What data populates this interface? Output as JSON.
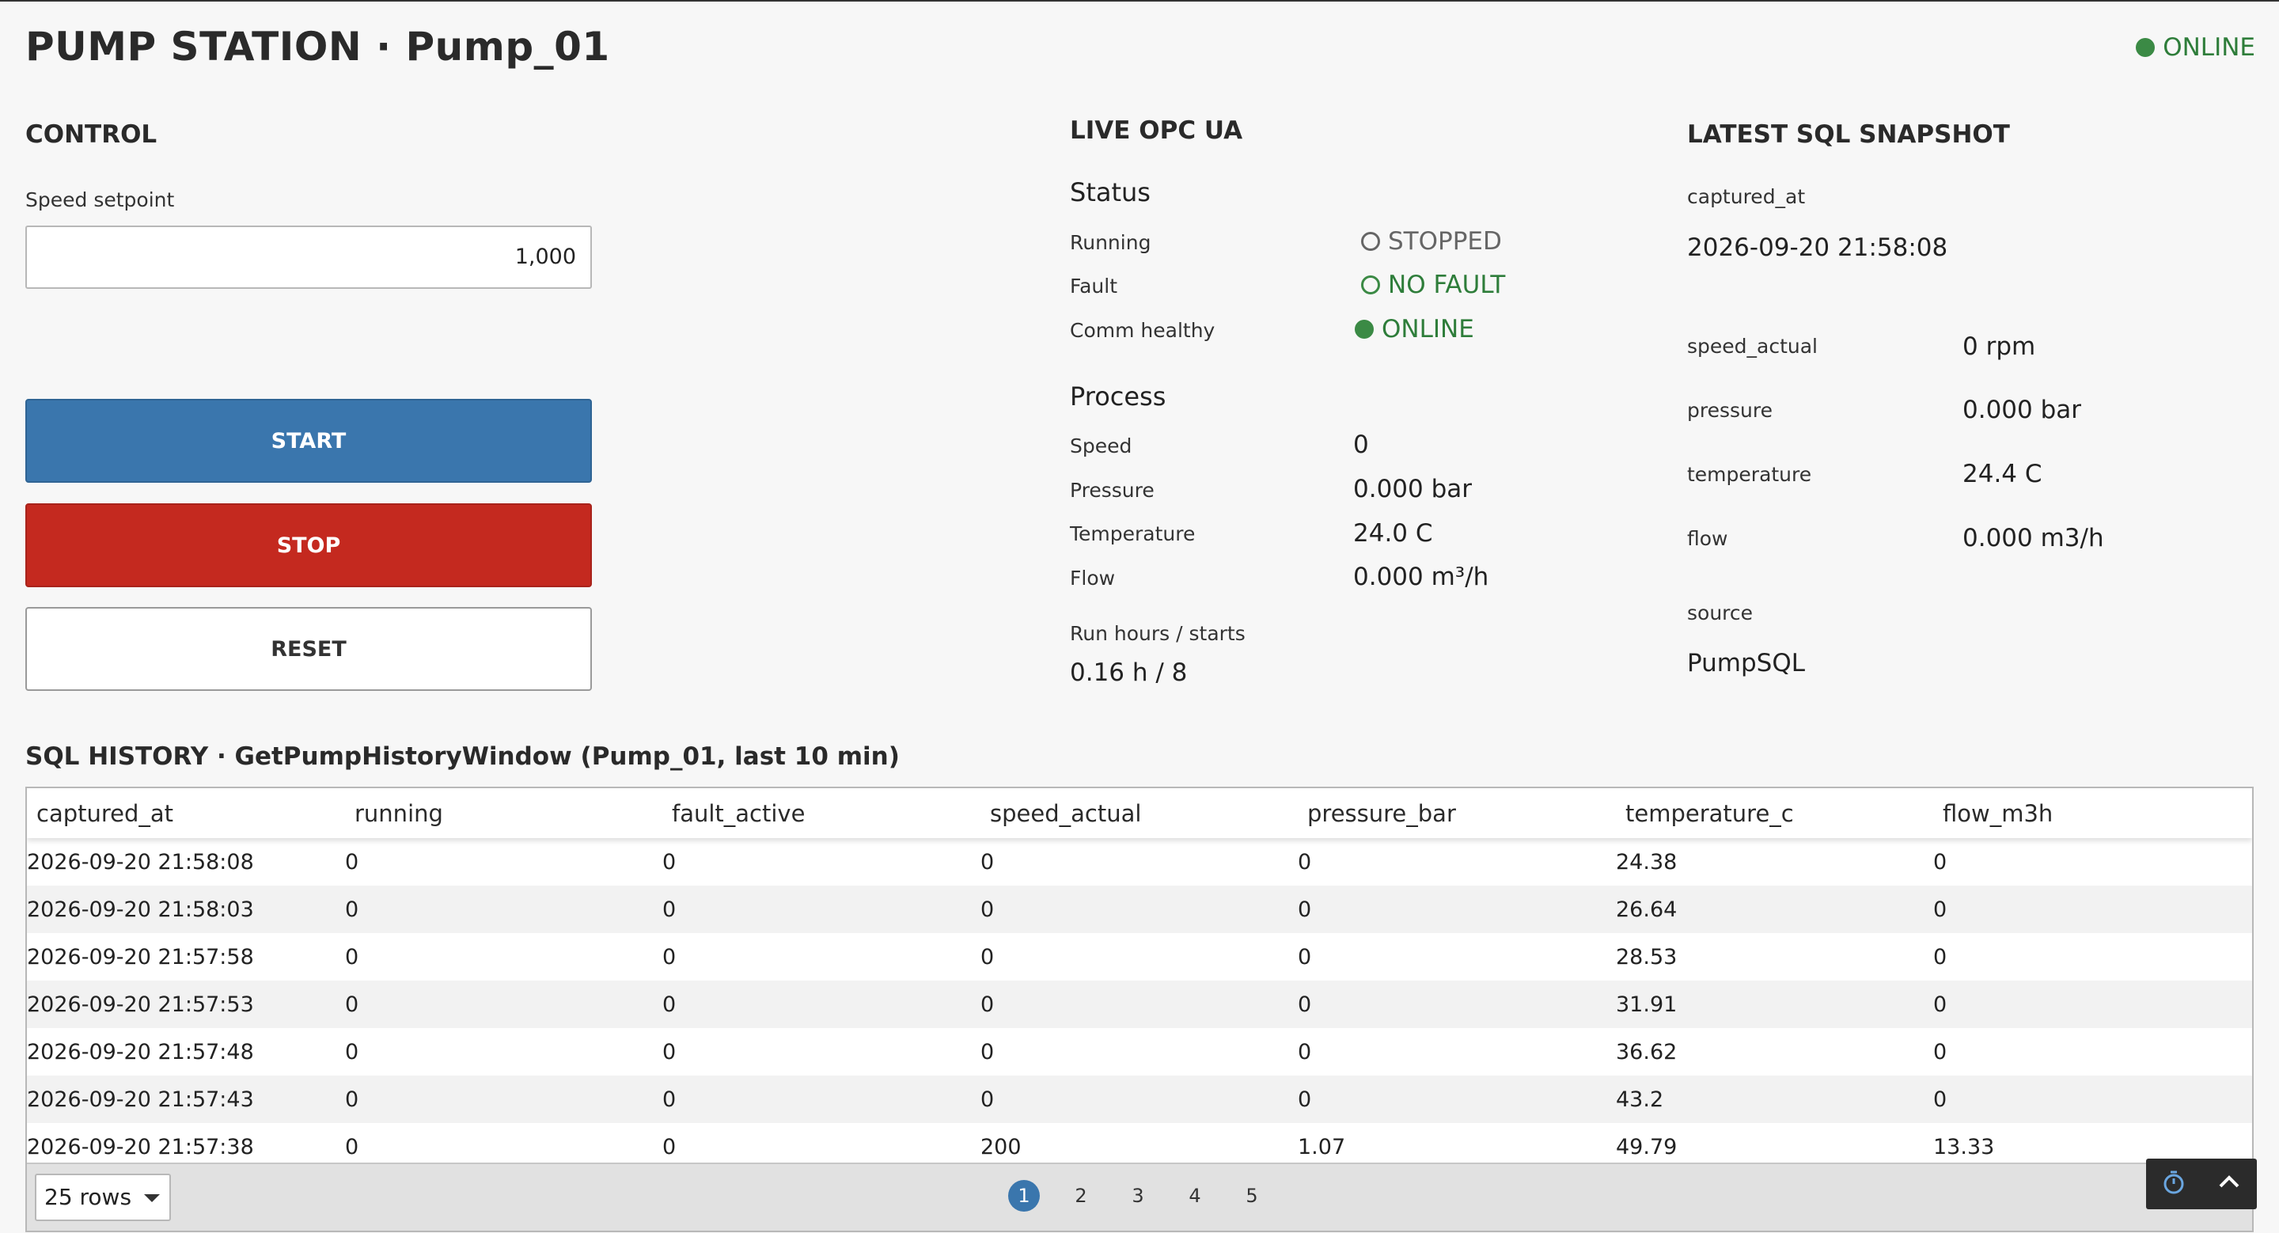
{
  "header": {
    "title": "PUMP STATION · Pump_01",
    "status": "ONLINE"
  },
  "control": {
    "heading": "CONTROL",
    "speed_label": "Speed setpoint",
    "speed_value": "1,000",
    "start_label": "START",
    "stop_label": "STOP",
    "reset_label": "RESET"
  },
  "opc": {
    "heading": "LIVE OPC UA",
    "status_heading": "Status",
    "running_label": "Running",
    "running_value": "STOPPED",
    "fault_label": "Fault",
    "fault_value": "NO FAULT",
    "comm_label": "Comm healthy",
    "comm_value": "ONLINE",
    "process_heading": "Process",
    "speed_label": "Speed",
    "speed_value": "0",
    "pressure_label": "Pressure",
    "pressure_value": "0.000 bar",
    "temperature_label": "Temperature",
    "temperature_value": "24.0 C",
    "flow_label": "Flow",
    "flow_value": "0.000 m³/h",
    "runhours_label": "Run hours / starts",
    "runhours_value": "0.16 h / 8"
  },
  "snapshot": {
    "heading": "LATEST SQL SNAPSHOT",
    "captured_label": "captured_at",
    "captured_value": "2026-09-20 21:58:08",
    "speed_label": "speed_actual",
    "speed_value": "0 rpm",
    "pressure_label": "pressure",
    "pressure_value": "0.000 bar",
    "temperature_label": "temperature",
    "temperature_value": "24.4 C",
    "flow_label": "flow",
    "flow_value": "0.000 m3/h",
    "source_label": "source",
    "source_value": "PumpSQL"
  },
  "history": {
    "heading": "SQL HISTORY · GetPumpHistoryWindow (Pump_01, last 10 min)",
    "columns": [
      "captured_at",
      "running",
      "fault_active",
      "speed_actual",
      "pressure_bar",
      "temperature_c",
      "flow_m3h"
    ],
    "rows": [
      [
        "2026-09-20 21:58:08",
        "0",
        "0",
        "0",
        "0",
        "24.38",
        "0"
      ],
      [
        "2026-09-20 21:58:03",
        "0",
        "0",
        "0",
        "0",
        "26.64",
        "0"
      ],
      [
        "2026-09-20 21:57:58",
        "0",
        "0",
        "0",
        "0",
        "28.53",
        "0"
      ],
      [
        "2026-09-20 21:57:53",
        "0",
        "0",
        "0",
        "0",
        "31.91",
        "0"
      ],
      [
        "2026-09-20 21:57:48",
        "0",
        "0",
        "0",
        "0",
        "36.62",
        "0"
      ],
      [
        "2026-09-20 21:57:43",
        "0",
        "0",
        "0",
        "0",
        "43.2",
        "0"
      ],
      [
        "2026-09-20 21:57:38",
        "0",
        "0",
        "200",
        "1.07",
        "49.79",
        "13.33"
      ]
    ],
    "rows_select": "25 rows",
    "pages": [
      "1",
      "2",
      "3",
      "4",
      "5"
    ],
    "active_page": "1"
  },
  "colors": {
    "online_green": "#3b8a45",
    "start_blue": "#3a76ad",
    "stop_red": "#c4291f"
  }
}
